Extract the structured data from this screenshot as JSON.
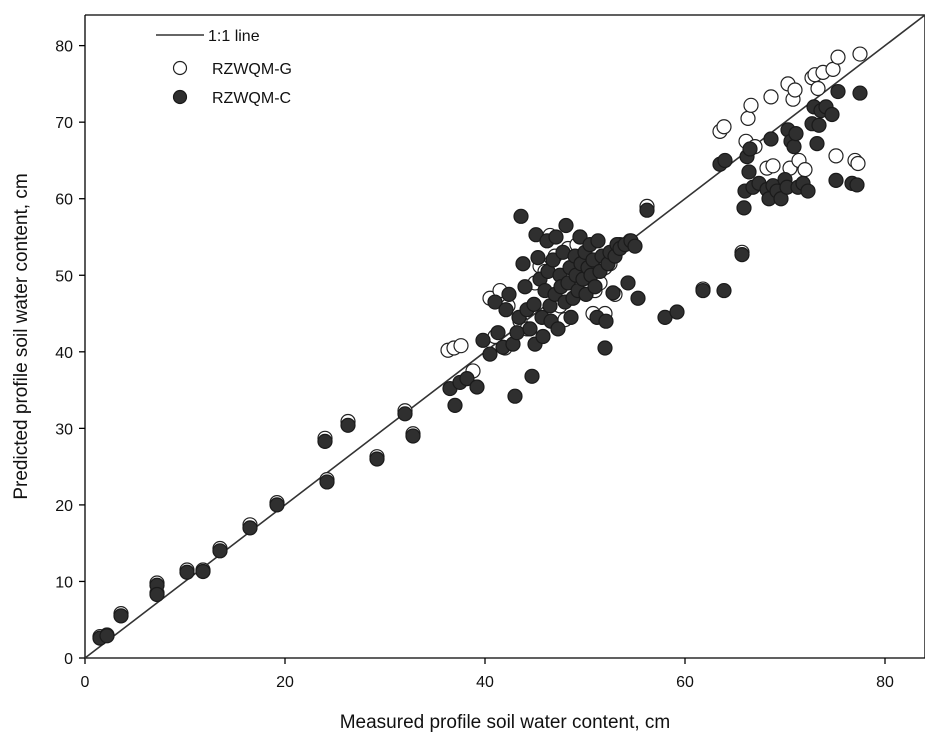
{
  "chart_data": {
    "type": "scatter",
    "title": "",
    "xlabel": "Measured profile soil water content, cm",
    "ylabel": "Predicted profile soil water content, cm",
    "xlim": [
      0,
      84
    ],
    "ylim": [
      0,
      84
    ],
    "xticks": [
      "0",
      "20",
      "40",
      "60",
      "80"
    ],
    "yticks": [
      "0",
      "10",
      "20",
      "30",
      "40",
      "50",
      "60",
      "70",
      "80"
    ],
    "grid": false,
    "legend_position": "top-left",
    "reference_line": {
      "name": "1:1 line",
      "slope": 1,
      "intercept": 0,
      "color": "#333333"
    },
    "series": [
      {
        "name": "RZWQM-G",
        "marker": "open-circle",
        "color": "#ffffff",
        "edge": "#222222",
        "points": [
          [
            1.5,
            2.8
          ],
          [
            2.2,
            3.0
          ],
          [
            3.6,
            5.8
          ],
          [
            7.2,
            9.8
          ],
          [
            7.2,
            8.5
          ],
          [
            10.2,
            11.5
          ],
          [
            11.8,
            11.5
          ],
          [
            13.5,
            14.3
          ],
          [
            16.5,
            17.4
          ],
          [
            19.2,
            20.3
          ],
          [
            24.0,
            28.7
          ],
          [
            24.2,
            23.3
          ],
          [
            26.3,
            30.9
          ],
          [
            29.2,
            26.3
          ],
          [
            32.0,
            32.3
          ],
          [
            32.8,
            29.3
          ],
          [
            36.3,
            40.2
          ],
          [
            36.9,
            40.5
          ],
          [
            37.6,
            40.8
          ],
          [
            38.8,
            37.5
          ],
          [
            40.5,
            47.0
          ],
          [
            41.0,
            42.0
          ],
          [
            41.5,
            48.0
          ],
          [
            42.0,
            40.5
          ],
          [
            42.3,
            46.0
          ],
          [
            43.5,
            44.0
          ],
          [
            44.2,
            43.0
          ],
          [
            45.0,
            49.0
          ],
          [
            45.5,
            51.2
          ],
          [
            46.0,
            50.5
          ],
          [
            46.5,
            55.2
          ],
          [
            47.0,
            52.5
          ],
          [
            47.5,
            46.0
          ],
          [
            48.0,
            44.2
          ],
          [
            48.3,
            53.5
          ],
          [
            48.8,
            50.0
          ],
          [
            49.2,
            54.0
          ],
          [
            49.5,
            55.0
          ],
          [
            50.0,
            48.5
          ],
          [
            50.3,
            52.0
          ],
          [
            50.8,
            45.0
          ],
          [
            51.0,
            48.0
          ],
          [
            51.5,
            49.0
          ],
          [
            52.0,
            45.0
          ],
          [
            52.0,
            51.0
          ],
          [
            52.5,
            51.5
          ],
          [
            53.0,
            47.5
          ],
          [
            53.5,
            54.0
          ],
          [
            54.5,
            54.5
          ],
          [
            56.2,
            59.0
          ],
          [
            61.8,
            48.2
          ],
          [
            63.5,
            68.8
          ],
          [
            63.9,
            69.4
          ],
          [
            65.7,
            53.0
          ],
          [
            66.1,
            67.5
          ],
          [
            66.3,
            70.5
          ],
          [
            66.6,
            72.2
          ],
          [
            67.0,
            66.8
          ],
          [
            68.2,
            64.0
          ],
          [
            68.6,
            73.3
          ],
          [
            68.8,
            64.3
          ],
          [
            70.3,
            75.0
          ],
          [
            70.5,
            64.0
          ],
          [
            70.8,
            73.0
          ],
          [
            71.0,
            74.2
          ],
          [
            71.4,
            65.0
          ],
          [
            72.0,
            63.8
          ],
          [
            72.7,
            75.8
          ],
          [
            73.0,
            76.2
          ],
          [
            73.3,
            74.4
          ],
          [
            73.8,
            76.5
          ],
          [
            74.8,
            76.9
          ],
          [
            75.1,
            65.6
          ],
          [
            75.3,
            78.5
          ],
          [
            77.0,
            65.0
          ],
          [
            77.3,
            64.6
          ],
          [
            77.5,
            78.9
          ]
        ]
      },
      {
        "name": "RZWQM-C",
        "marker": "filled-circle",
        "color": "#2f2f2f",
        "edge": "#1a1a1a",
        "points": [
          [
            1.5,
            2.6
          ],
          [
            2.2,
            2.9
          ],
          [
            3.6,
            5.5
          ],
          [
            7.2,
            9.5
          ],
          [
            7.2,
            8.3
          ],
          [
            10.2,
            11.2
          ],
          [
            11.8,
            11.3
          ],
          [
            13.5,
            14.0
          ],
          [
            16.5,
            17.0
          ],
          [
            19.2,
            20.0
          ],
          [
            24.0,
            28.3
          ],
          [
            24.2,
            23.0
          ],
          [
            26.3,
            30.4
          ],
          [
            29.2,
            26.0
          ],
          [
            32.0,
            31.9
          ],
          [
            32.8,
            29.0
          ],
          [
            36.5,
            35.2
          ],
          [
            37.0,
            33.0
          ],
          [
            37.5,
            36.0
          ],
          [
            38.2,
            36.5
          ],
          [
            39.2,
            35.4
          ],
          [
            39.8,
            41.5
          ],
          [
            40.5,
            39.7
          ],
          [
            41.0,
            46.5
          ],
          [
            41.3,
            42.5
          ],
          [
            41.8,
            40.6
          ],
          [
            42.1,
            45.5
          ],
          [
            42.4,
            47.5
          ],
          [
            42.8,
            41.0
          ],
          [
            43.0,
            34.2
          ],
          [
            43.2,
            42.5
          ],
          [
            43.4,
            44.5
          ],
          [
            43.6,
            57.7
          ],
          [
            43.8,
            51.5
          ],
          [
            44.0,
            48.5
          ],
          [
            44.2,
            45.5
          ],
          [
            44.5,
            43.0
          ],
          [
            44.7,
            36.8
          ],
          [
            44.9,
            46.2
          ],
          [
            45.0,
            41.0
          ],
          [
            45.1,
            55.3
          ],
          [
            45.3,
            52.3
          ],
          [
            45.5,
            49.5
          ],
          [
            45.7,
            44.5
          ],
          [
            45.8,
            42.0
          ],
          [
            46.0,
            48.0
          ],
          [
            46.2,
            54.5
          ],
          [
            46.3,
            50.5
          ],
          [
            46.5,
            46.0
          ],
          [
            46.6,
            44.0
          ],
          [
            46.8,
            52.0
          ],
          [
            47.0,
            47.5
          ],
          [
            47.1,
            55.0
          ],
          [
            47.3,
            43.0
          ],
          [
            47.5,
            50.0
          ],
          [
            47.6,
            48.5
          ],
          [
            47.8,
            53.0
          ],
          [
            48.0,
            46.5
          ],
          [
            48.1,
            56.5
          ],
          [
            48.3,
            49.0
          ],
          [
            48.5,
            51.0
          ],
          [
            48.6,
            44.5
          ],
          [
            48.8,
            47.0
          ],
          [
            49.0,
            52.5
          ],
          [
            49.1,
            50.0
          ],
          [
            49.3,
            48.0
          ],
          [
            49.5,
            55.0
          ],
          [
            49.6,
            51.5
          ],
          [
            49.8,
            49.5
          ],
          [
            50.0,
            53.0
          ],
          [
            50.1,
            47.5
          ],
          [
            50.3,
            51.0
          ],
          [
            50.5,
            54.0
          ],
          [
            50.6,
            50.0
          ],
          [
            50.8,
            52.0
          ],
          [
            51.0,
            48.5
          ],
          [
            51.2,
            44.5
          ],
          [
            51.3,
            54.5
          ],
          [
            51.5,
            50.5
          ],
          [
            51.7,
            52.5
          ],
          [
            52.0,
            40.5
          ],
          [
            52.1,
            44.0
          ],
          [
            52.3,
            51.5
          ],
          [
            52.5,
            53.0
          ],
          [
            52.8,
            47.7
          ],
          [
            53.0,
            52.5
          ],
          [
            53.2,
            54.0
          ],
          [
            53.5,
            53.5
          ],
          [
            54.0,
            54.0
          ],
          [
            54.3,
            49.0
          ],
          [
            54.6,
            54.5
          ],
          [
            55.0,
            53.8
          ],
          [
            55.3,
            47.0
          ],
          [
            56.2,
            58.5
          ],
          [
            58.0,
            44.5
          ],
          [
            59.2,
            45.2
          ],
          [
            61.8,
            48.0
          ],
          [
            63.5,
            64.5
          ],
          [
            63.9,
            48.0
          ],
          [
            64.0,
            65.0
          ],
          [
            65.7,
            52.7
          ],
          [
            65.9,
            58.8
          ],
          [
            66.0,
            61.0
          ],
          [
            66.2,
            65.5
          ],
          [
            66.4,
            63.5
          ],
          [
            66.5,
            66.5
          ],
          [
            66.8,
            61.5
          ],
          [
            67.4,
            62.0
          ],
          [
            68.2,
            61.2
          ],
          [
            68.4,
            60.0
          ],
          [
            68.6,
            67.8
          ],
          [
            68.8,
            61.7
          ],
          [
            69.2,
            61.0
          ],
          [
            69.6,
            60.0
          ],
          [
            70.0,
            62.5
          ],
          [
            70.2,
            61.5
          ],
          [
            70.3,
            69.0
          ],
          [
            70.6,
            67.5
          ],
          [
            70.9,
            66.8
          ],
          [
            71.1,
            68.5
          ],
          [
            71.3,
            61.5
          ],
          [
            71.8,
            62.0
          ],
          [
            72.3,
            61.0
          ],
          [
            72.7,
            69.8
          ],
          [
            72.9,
            72.0
          ],
          [
            73.2,
            67.2
          ],
          [
            73.4,
            69.6
          ],
          [
            73.6,
            71.5
          ],
          [
            74.1,
            72.0
          ],
          [
            74.7,
            71.0
          ],
          [
            75.1,
            62.4
          ],
          [
            75.3,
            74.0
          ],
          [
            76.7,
            62.0
          ],
          [
            77.2,
            61.8
          ],
          [
            77.5,
            73.8
          ]
        ]
      }
    ]
  }
}
